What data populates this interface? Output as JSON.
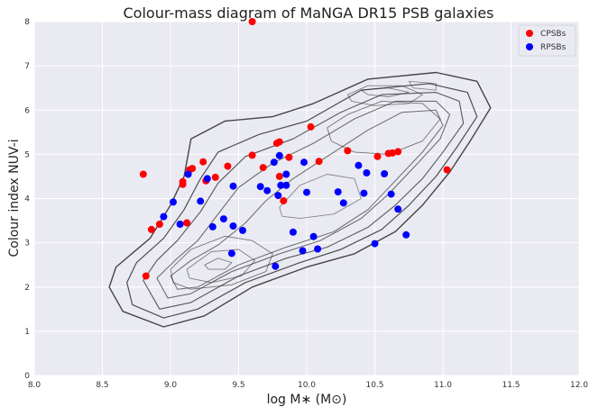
{
  "chart_data": {
    "type": "scatter",
    "title": "Colour-mass diagram of MaNGA DR15 PSB galaxies",
    "xlabel": "log M∗ (M⊙)",
    "ylabel": "Colour index NUV-i",
    "xlim": [
      8.0,
      12.0
    ],
    "ylim": [
      0,
      8
    ],
    "xticks": [
      8.0,
      8.5,
      9.0,
      9.5,
      10.0,
      10.5,
      11.0,
      11.5,
      12.0
    ],
    "xtick_labels": [
      "8.0",
      "8.5",
      "9.0",
      "9.5",
      "10.0",
      "10.5",
      "11.0",
      "11.5",
      "12.0"
    ],
    "yticks": [
      0,
      1,
      2,
      3,
      4,
      5,
      6,
      7,
      8
    ],
    "ytick_labels": [
      "0",
      "1",
      "2",
      "3",
      "4",
      "5",
      "6",
      "7",
      "8"
    ],
    "grid": true,
    "background": "#eaeaf2",
    "legend_position": "top-right",
    "series": [
      {
        "name": "CPSBs",
        "color": "#ff0000",
        "points": [
          [
            9.6,
            8.0
          ],
          [
            10.03,
            5.62
          ],
          [
            10.3,
            5.08
          ],
          [
            9.8,
            5.28
          ],
          [
            9.78,
            5.25
          ],
          [
            9.6,
            4.98
          ],
          [
            9.87,
            4.93
          ],
          [
            10.09,
            4.84
          ],
          [
            9.24,
            4.83
          ],
          [
            9.68,
            4.7
          ],
          [
            9.42,
            4.73
          ],
          [
            9.16,
            4.68
          ],
          [
            9.14,
            4.65
          ],
          [
            8.8,
            4.55
          ],
          [
            9.33,
            4.48
          ],
          [
            9.8,
            4.5
          ],
          [
            9.09,
            4.38
          ],
          [
            9.09,
            4.32
          ],
          [
            9.26,
            4.4
          ],
          [
            9.83,
            3.95
          ],
          [
            8.92,
            3.42
          ],
          [
            8.86,
            3.3
          ],
          [
            9.12,
            3.45
          ],
          [
            10.52,
            4.95
          ],
          [
            10.6,
            5.02
          ],
          [
            10.63,
            5.03
          ],
          [
            10.67,
            5.06
          ],
          [
            11.03,
            4.65
          ],
          [
            8.82,
            2.25
          ]
        ]
      },
      {
        "name": "RPSBs",
        "color": "#0000ff",
        "points": [
          [
            9.8,
            4.97
          ],
          [
            9.76,
            4.82
          ],
          [
            9.98,
            4.82
          ],
          [
            9.85,
            4.55
          ],
          [
            9.13,
            4.55
          ],
          [
            9.27,
            4.45
          ],
          [
            9.46,
            4.28
          ],
          [
            9.66,
            4.27
          ],
          [
            9.71,
            4.18
          ],
          [
            9.81,
            4.3
          ],
          [
            9.85,
            4.3
          ],
          [
            9.79,
            4.07
          ],
          [
            10.0,
            4.14
          ],
          [
            10.23,
            4.15
          ],
          [
            10.38,
            4.75
          ],
          [
            10.44,
            4.58
          ],
          [
            10.57,
            4.56
          ],
          [
            10.42,
            4.12
          ],
          [
            10.62,
            4.1
          ],
          [
            10.27,
            3.9
          ],
          [
            9.02,
            3.92
          ],
          [
            9.22,
            3.94
          ],
          [
            10.67,
            3.76
          ],
          [
            8.95,
            3.59
          ],
          [
            9.07,
            3.42
          ],
          [
            9.31,
            3.36
          ],
          [
            9.39,
            3.54
          ],
          [
            9.46,
            3.38
          ],
          [
            9.53,
            3.28
          ],
          [
            9.9,
            3.24
          ],
          [
            10.05,
            3.14
          ],
          [
            10.5,
            2.98
          ],
          [
            10.73,
            3.18
          ],
          [
            9.97,
            2.82
          ],
          [
            10.08,
            2.86
          ],
          [
            9.45,
            2.76
          ],
          [
            9.77,
            2.47
          ]
        ]
      }
    ]
  }
}
